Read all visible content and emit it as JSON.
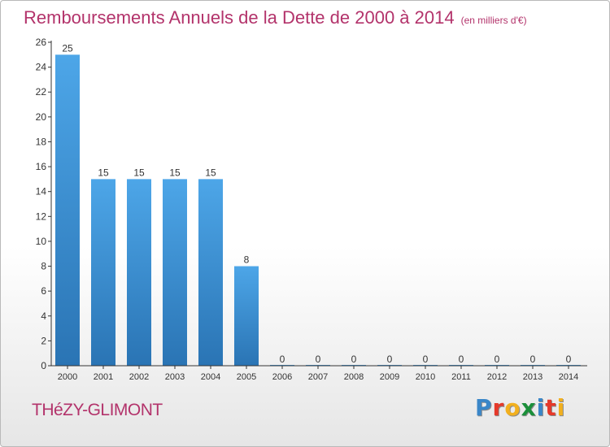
{
  "title": "Remboursements Annuels de la Dette de 2000 à 2014",
  "unit": "(en milliers d'€)",
  "commune": "THéZY-GLIMONT",
  "logo": {
    "letters": [
      "P",
      "r",
      "o",
      "x",
      "i",
      "t",
      "i"
    ],
    "colors": [
      "#3a86c8",
      "#e5392a",
      "#f2b01e",
      "#1b8f3a",
      "#3a86c8",
      "#e5392a",
      "#f2b01e"
    ]
  },
  "colors": {
    "bar": "#4da6e8",
    "bar_dark": "#2a74b4",
    "text": "#b3336b",
    "axis": "#333333"
  },
  "chart_data": {
    "type": "bar",
    "categories": [
      "2000",
      "2001",
      "2002",
      "2003",
      "2004",
      "2005",
      "2006",
      "2007",
      "2008",
      "2009",
      "2010",
      "2011",
      "2012",
      "2013",
      "2014"
    ],
    "values": [
      25,
      15,
      15,
      15,
      15,
      8,
      0,
      0,
      0,
      0,
      0,
      0,
      0,
      0,
      0
    ],
    "ylim": [
      0,
      26
    ],
    "yticks": [
      0,
      2,
      4,
      6,
      8,
      10,
      12,
      14,
      16,
      18,
      20,
      22,
      24,
      26
    ],
    "grid": false,
    "xlabel": "",
    "ylabel": ""
  }
}
